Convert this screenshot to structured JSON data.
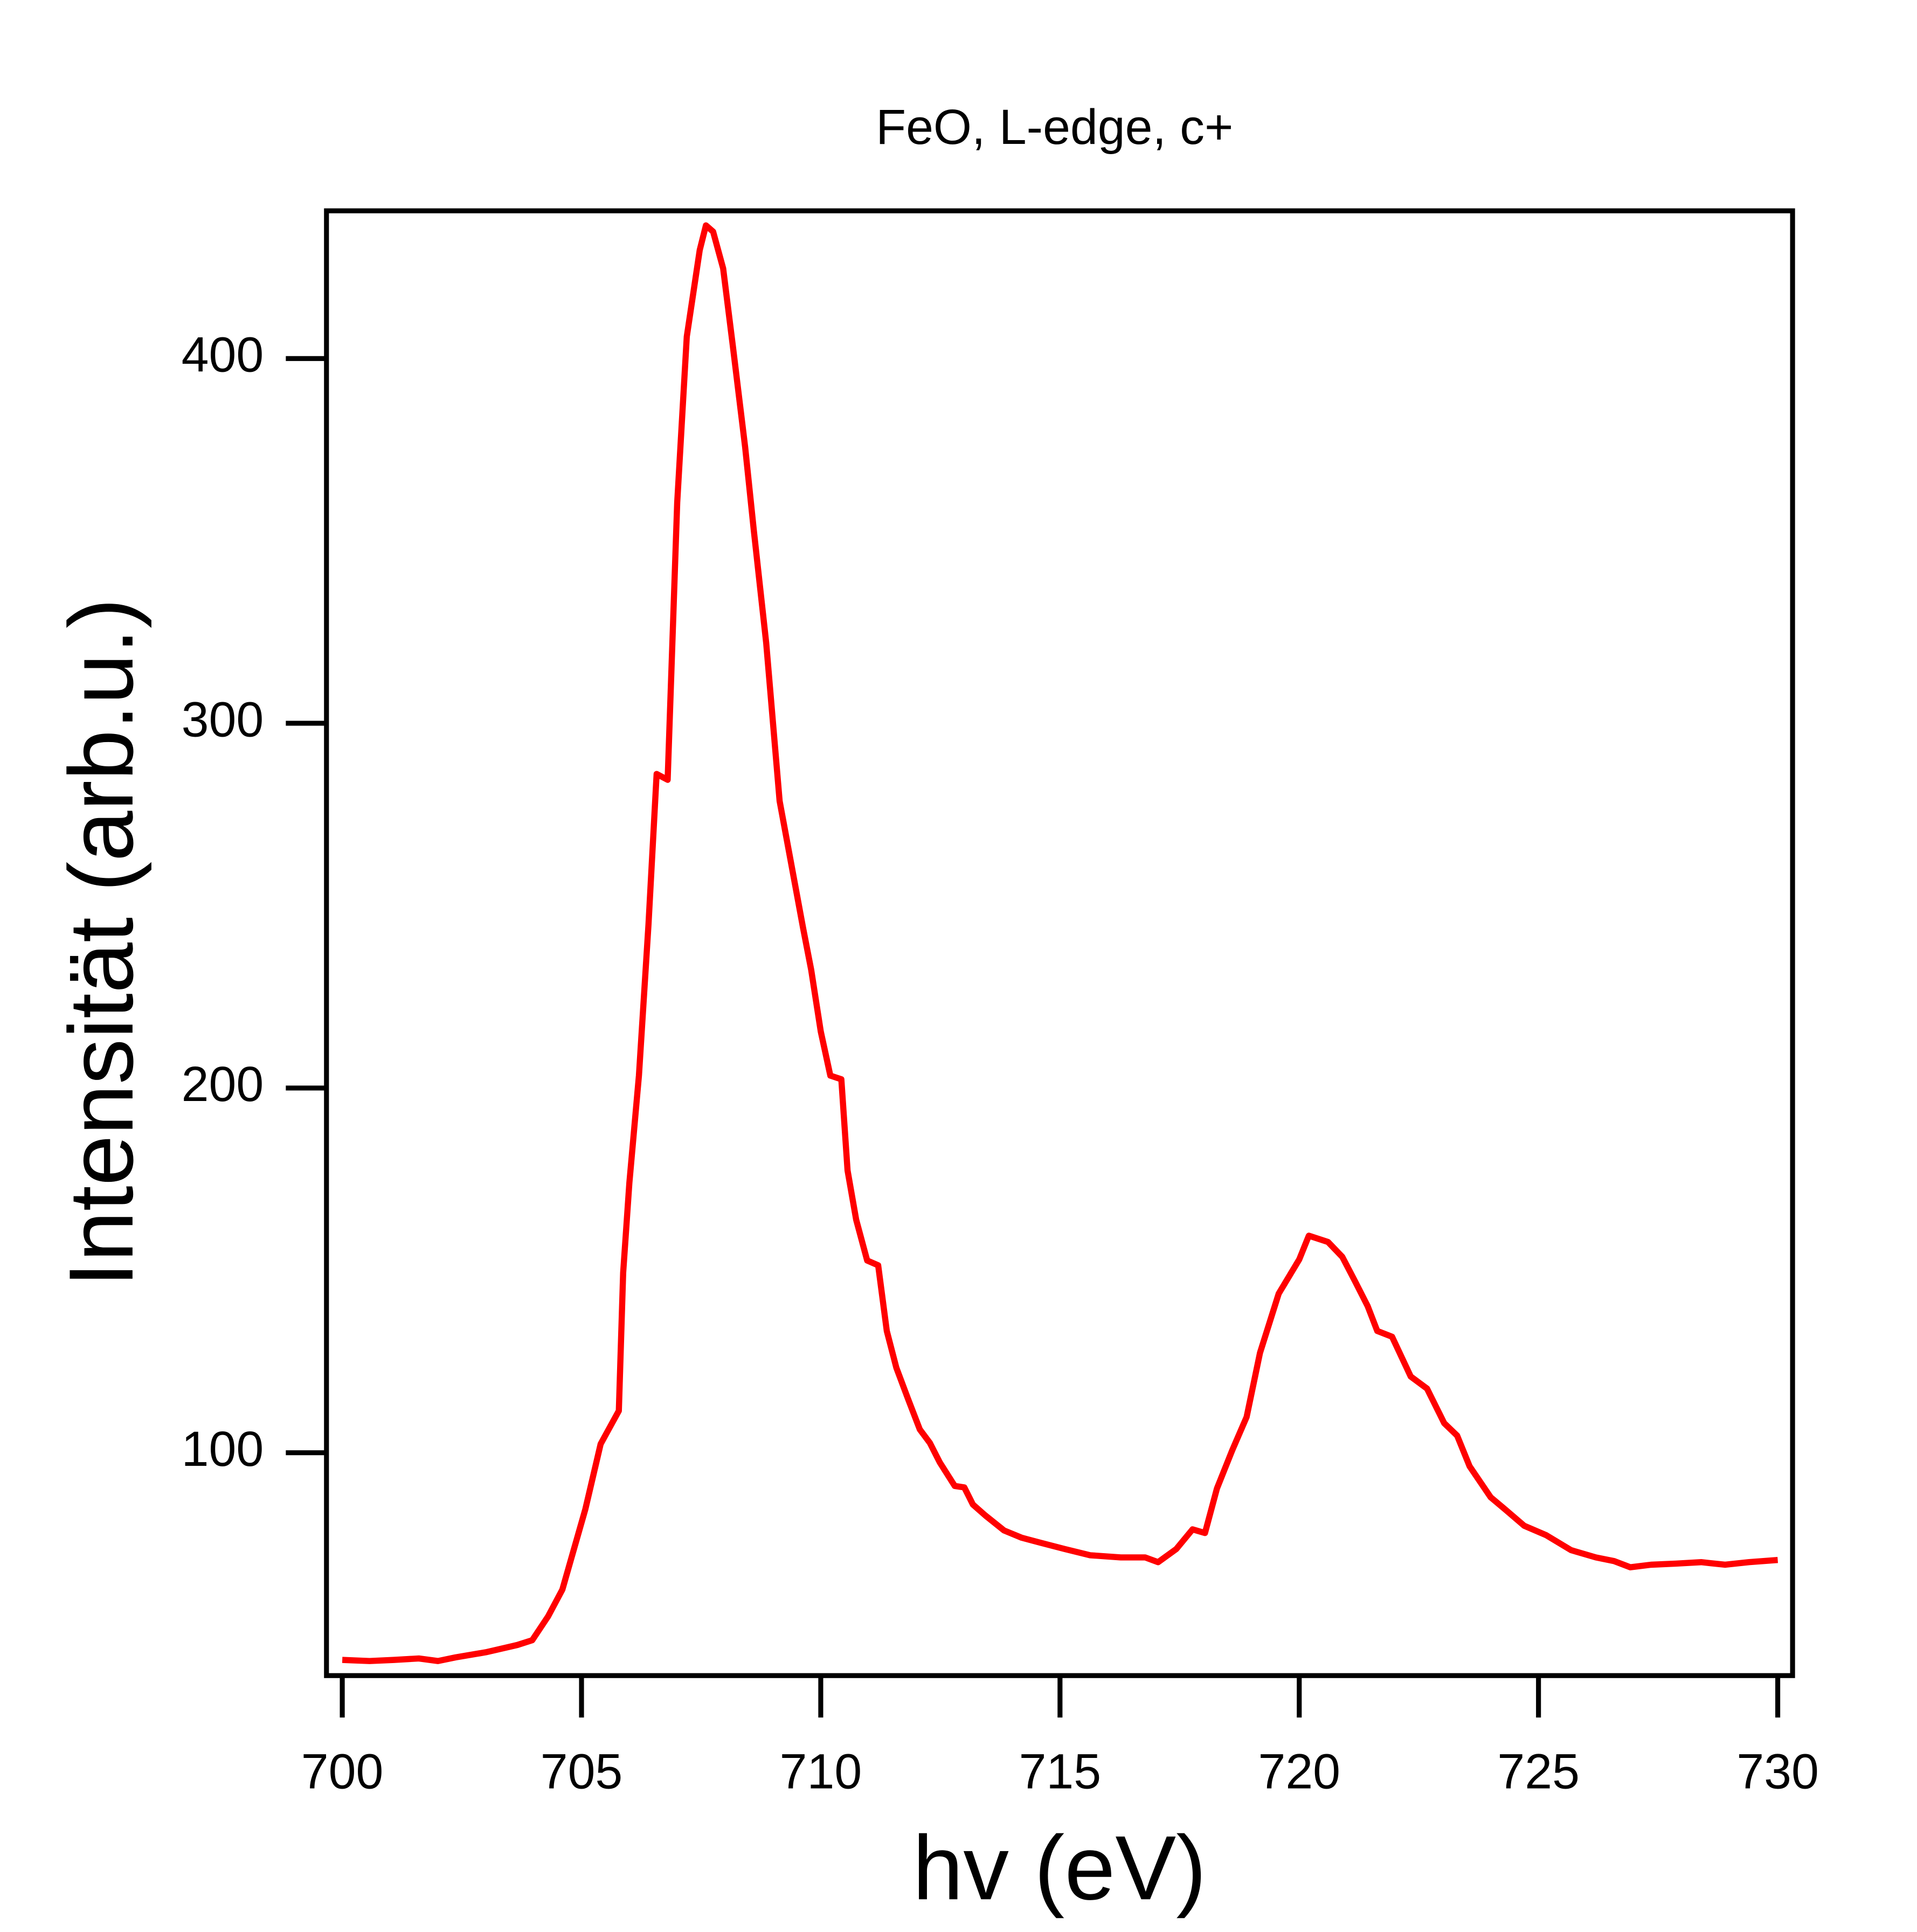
{
  "chart_data": {
    "type": "line",
    "title": "FeO, L-edge, c+",
    "x_label": "hv (eV)",
    "y_label": "Intensität (arb.u.)",
    "xlim": [
      699.67,
      730.31
    ],
    "ylim": [
      38.9,
      440.5
    ],
    "xticks": [
      700,
      705,
      710,
      715,
      720,
      725,
      730
    ],
    "yticks": [
      100,
      200,
      300,
      400
    ],
    "grid": false,
    "series": [
      {
        "name": "FeO, L-edge, c+",
        "color": "#ff0000",
        "x": [
          700,
          700.57,
          701.08,
          701.6,
          702,
          702.37,
          703.0,
          703.66,
          703.97,
          704.3,
          704.6,
          705.08,
          705.4,
          705.78,
          705.87,
          706.0,
          706.2,
          706.4,
          706.57,
          706.8,
          707.0,
          707.2,
          707.47,
          707.6,
          707.75,
          707.96,
          708.16,
          708.42,
          708.6,
          708.86,
          709.14,
          709.63,
          709.8,
          710.0,
          710.2,
          710.43,
          710.56,
          710.74,
          710.97,
          711.2,
          711.38,
          711.58,
          711.82,
          712.07,
          712.28,
          712.49,
          712.8,
          713.0,
          713.18,
          713.44,
          713.83,
          714.2,
          714.6,
          715.1,
          715.63,
          716.27,
          716.78,
          717.05,
          717.43,
          717.77,
          718.03,
          718.28,
          718.6,
          718.9,
          719.18,
          719.57,
          720.0,
          720.2,
          720.6,
          720.9,
          721.17,
          721.43,
          721.63,
          721.94,
          722.33,
          722.67,
          723.03,
          723.3,
          723.56,
          724.0,
          724.3,
          724.7,
          725.16,
          725.68,
          726.2,
          726.58,
          726.92,
          727.35,
          727.87,
          728.4,
          728.9,
          729.4,
          730.0
        ],
        "values": [
          43.2,
          42.9,
          43.2,
          43.6,
          42.9,
          43.9,
          45.3,
          47.3,
          48.6,
          55.1,
          62.5,
          84.5,
          102.4,
          111.5,
          149.3,
          174,
          203.4,
          244.9,
          286.1,
          284.5,
          360.5,
          406,
          429.7,
          436.5,
          434.8,
          424.7,
          403.7,
          375.7,
          353,
          322,
          278.7,
          243.9,
          232.4,
          215.5,
          203.4,
          202.4,
          177.4,
          163.9,
          152.7,
          151.4,
          133.4,
          123.3,
          114.9,
          106.4,
          102.7,
          97.3,
          90.9,
          90.5,
          85.8,
          82.8,
          78.7,
          76.7,
          75.3,
          73.6,
          71.9,
          71.3,
          71.3,
          70,
          73.6,
          79,
          78,
          90.2,
          100.7,
          109.8,
          127.4,
          143.6,
          153.0,
          159.5,
          157.8,
          153.7,
          146.9,
          140.2,
          133.4,
          131.8,
          120.9,
          117.6,
          108.1,
          104.7,
          96.3,
          87.8,
          84.5,
          80,
          77.4,
          73.3,
          71.3,
          70.3,
          68.6,
          69.3,
          69.6,
          70,
          69.3,
          70,
          70.6
        ]
      }
    ]
  }
}
